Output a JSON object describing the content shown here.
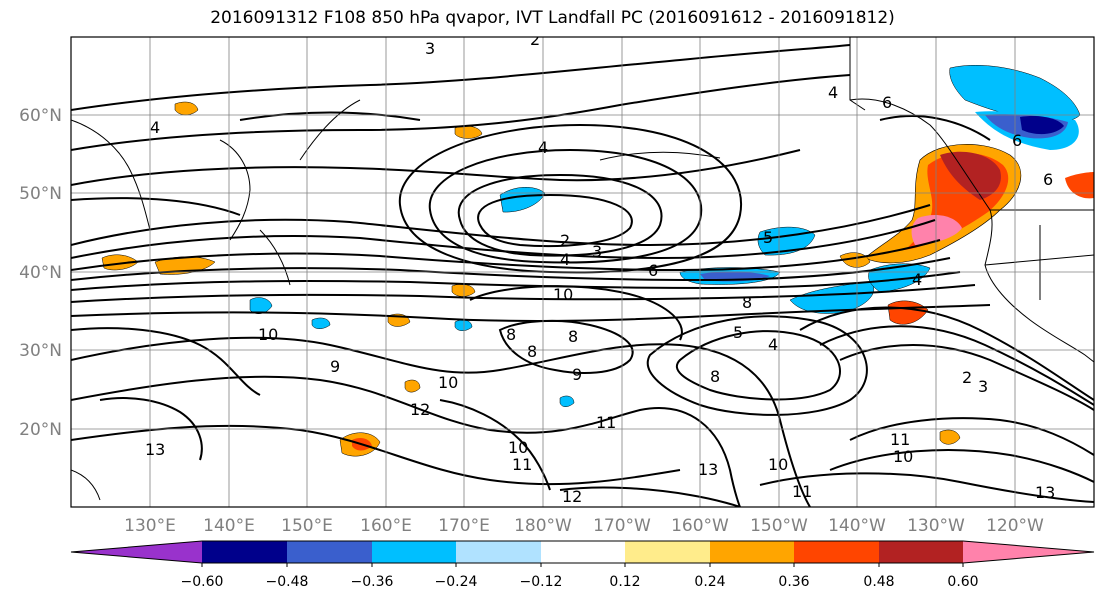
{
  "title": "2016091312 F108 850 hPa qvapor, IVT Landfall PC (2016091612 - 2016091812)",
  "map": {
    "lat_labels": [
      "60°N",
      "50°N",
      "40°N",
      "30°N",
      "20°N"
    ],
    "lon_labels": [
      "130°E",
      "140°E",
      "150°E",
      "160°E",
      "170°E",
      "180°W",
      "170°W",
      "160°W",
      "150°W",
      "140°W",
      "130°W",
      "120°W"
    ],
    "contour_labels": [
      "3",
      "2",
      "4",
      "4",
      "6",
      "4",
      "6",
      "6",
      "2",
      "3",
      "4",
      "6",
      "5",
      "10",
      "10",
      "8",
      "8",
      "8",
      "9",
      "9",
      "10",
      "12",
      "11",
      "13",
      "10",
      "11",
      "12",
      "13",
      "11",
      "10",
      "13",
      "2",
      "3",
      "5",
      "8",
      "4",
      "4",
      "8",
      "11",
      "10"
    ]
  },
  "colorbar": {
    "tick_labels": [
      "−0.60",
      "−0.48",
      "−0.36",
      "−0.24",
      "−0.12",
      "0.12",
      "0.24",
      "0.36",
      "0.48",
      "0.60"
    ],
    "colors": [
      "#9932cc",
      "#00008b",
      "#3a5fcd",
      "#00bfff",
      "#b0e2ff",
      "#ffffff",
      "#ffec8b",
      "#ffa500",
      "#ff4500",
      "#b22222",
      "#ff82ab"
    ]
  }
}
